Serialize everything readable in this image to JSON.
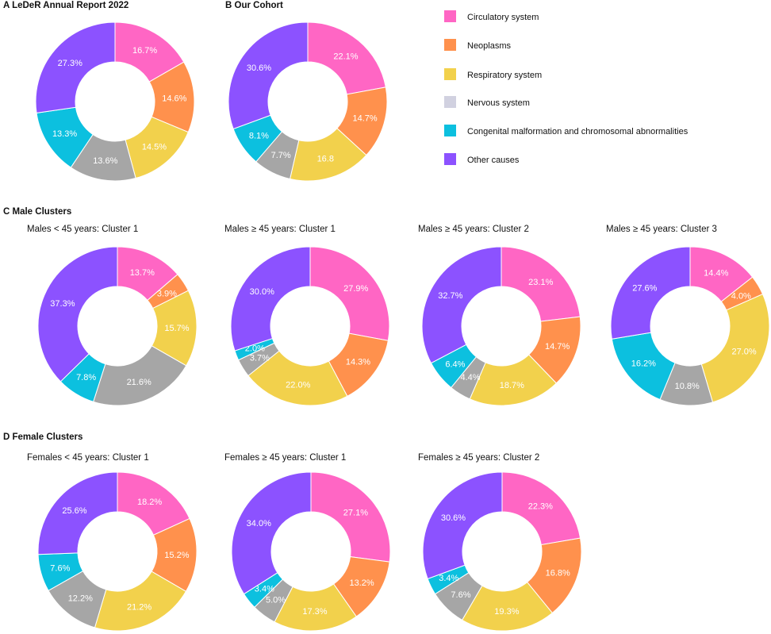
{
  "colors": {
    "Circulatory system": "#FF66C4",
    "Neoplasms": "#FF914D",
    "Respiratory system": "#F2D14C",
    "Nervous system": "#A6A6A6",
    "Congenital malformation and chromosomal abnormalities": "#0CC0DF",
    "Other causes": "#8C52FF"
  },
  "legend": {
    "items": [
      {
        "label": "Circulatory system",
        "color": "#FF66C4"
      },
      {
        "label": "Neoplasms",
        "color": "#FF914D"
      },
      {
        "label": "Respiratory system",
        "color": "#F2D14C"
      },
      {
        "label": "Nervous system",
        "color": "#D1D1E0"
      },
      {
        "label": "Congenital malformation and chromosomal abnormalities",
        "color": "#0CC0DF"
      },
      {
        "label": "Other causes",
        "color": "#8C52FF"
      }
    ]
  },
  "sections": {
    "c": "C Male Clusters",
    "d": "D Female Clusters"
  },
  "chart_data": [
    {
      "type": "pie",
      "title": "A LeDeR Annual Report 2022",
      "title_bold": true,
      "categories": [
        "Circulatory system",
        "Neoplasms",
        "Respiratory system",
        "Nervous system",
        "Congenital malformation and chromosomal abnormalities",
        "Other causes"
      ],
      "values": [
        16.7,
        14.6,
        14.5,
        13.6,
        13.3,
        27.3
      ],
      "labels": [
        "16.7%",
        "14.6%",
        "14.5%",
        "13.6%",
        "13.3%",
        "27.3%"
      ]
    },
    {
      "type": "pie",
      "title": "B Our Cohort",
      "title_bold": true,
      "categories": [
        "Circulatory system",
        "Neoplasms",
        "Respiratory system",
        "Nervous system",
        "Congenital malformation and chromosomal abnormalities",
        "Other causes"
      ],
      "values": [
        22.1,
        14.7,
        16.8,
        7.7,
        8.1,
        30.6
      ],
      "labels": [
        "22.1%",
        "14.7%",
        "16.8",
        "7.7%",
        "8.1%",
        "30.6%"
      ]
    },
    {
      "type": "pie",
      "title": "Males < 45 years: Cluster 1",
      "categories": [
        "Circulatory system",
        "Neoplasms",
        "Respiratory system",
        "Nervous system",
        "Congenital malformation and chromosomal abnormalities",
        "Other causes"
      ],
      "values": [
        13.7,
        3.9,
        15.7,
        21.6,
        7.8,
        37.3
      ],
      "labels": [
        "13.7%",
        "3.9%",
        "15.7%",
        "21.6%",
        "7.8%",
        "37.3%"
      ]
    },
    {
      "type": "pie",
      "title": "Males ≥ 45 years: Cluster 1",
      "categories": [
        "Circulatory system",
        "Neoplasms",
        "Respiratory system",
        "Nervous system",
        "Congenital malformation and chromosomal abnormalities",
        "Other causes"
      ],
      "values": [
        27.9,
        14.3,
        22.0,
        3.7,
        2.0,
        30.0
      ],
      "labels": [
        "27.9%",
        "14.3%",
        "22.0%",
        "3.7%",
        "2.0%",
        "30.0%"
      ]
    },
    {
      "type": "pie",
      "title": "Males ≥ 45 years: Cluster 2",
      "categories": [
        "Circulatory system",
        "Neoplasms",
        "Respiratory system",
        "Nervous system",
        "Congenital malformation and chromosomal abnormalities",
        "Other causes"
      ],
      "values": [
        23.1,
        14.7,
        18.7,
        4.4,
        6.4,
        32.7
      ],
      "labels": [
        "23.1%",
        "14.7%",
        "18.7%",
        "4.4%",
        "6.4%",
        "32.7%"
      ]
    },
    {
      "type": "pie",
      "title": "Males ≥ 45 years: Cluster 3",
      "categories": [
        "Circulatory system",
        "Neoplasms",
        "Respiratory system",
        "Nervous system",
        "Congenital malformation and chromosomal abnormalities",
        "Other causes"
      ],
      "values": [
        14.4,
        4.0,
        27.0,
        10.8,
        16.2,
        27.6
      ],
      "labels": [
        "14.4%",
        "4.0%",
        "27.0%",
        "10.8%",
        "16.2%",
        "27.6%"
      ]
    },
    {
      "type": "pie",
      "title": "Females < 45 years: Cluster 1",
      "categories": [
        "Circulatory system",
        "Neoplasms",
        "Respiratory system",
        "Nervous system",
        "Congenital malformation and chromosomal abnormalities",
        "Other causes"
      ],
      "values": [
        18.2,
        15.2,
        21.2,
        12.2,
        7.6,
        25.6
      ],
      "labels": [
        "18.2%",
        "15.2%",
        "21.2%",
        "12.2%",
        "7.6%",
        "25.6%"
      ]
    },
    {
      "type": "pie",
      "title": "Females ≥ 45 years: Cluster 1",
      "categories": [
        "Circulatory system",
        "Neoplasms",
        "Respiratory system",
        "Nervous system",
        "Congenital malformation and chromosomal abnormalities",
        "Other causes"
      ],
      "values": [
        27.1,
        13.2,
        17.3,
        5.0,
        3.4,
        34.0
      ],
      "labels": [
        "27.1%",
        "13.2%",
        "17.3%",
        "5.0%",
        "3.4%",
        "34.0%"
      ]
    },
    {
      "type": "pie",
      "title": "Females ≥ 45 years: Cluster 2",
      "categories": [
        "Circulatory system",
        "Neoplasms",
        "Respiratory system",
        "Nervous system",
        "Congenital malformation and chromosomal abnormalities",
        "Other causes"
      ],
      "values": [
        22.3,
        16.8,
        19.3,
        7.6,
        3.4,
        30.6
      ],
      "labels": [
        "22.3%",
        "16.8%",
        "19.3%",
        "7.6%",
        "3.4%",
        "30.6%"
      ]
    }
  ]
}
